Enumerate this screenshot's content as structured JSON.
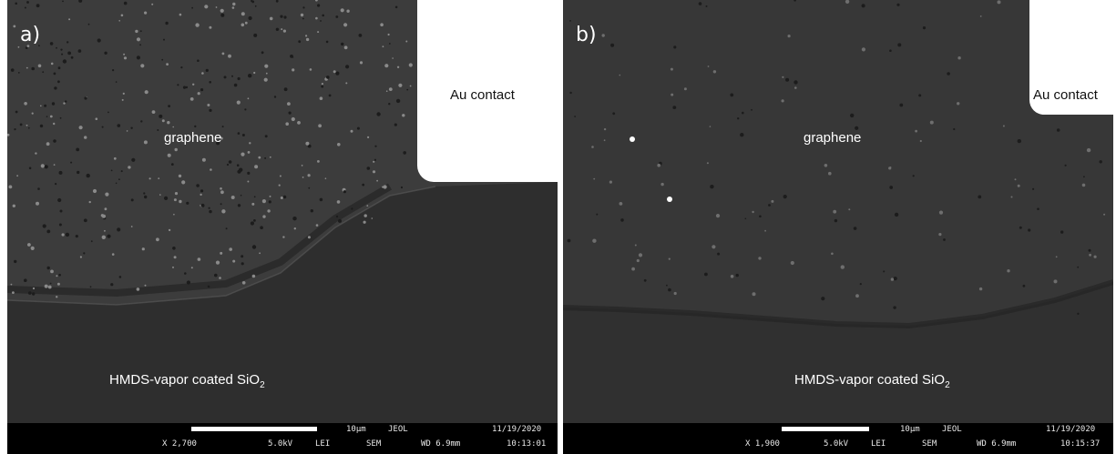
{
  "panels": [
    {
      "label": "a)",
      "graphene_label": "graphene",
      "contact_label": "Au contact",
      "substrate_label": "HMDS-vapor coated SiO",
      "substrate_sub": "2",
      "info": {
        "magnification": "X 2,700",
        "voltage": "5.0kV",
        "detector": "LEI",
        "mode": "SEM",
        "scale": "10µm",
        "brand": "JEOL",
        "wd": "WD 6.9mm",
        "date": "11/19/2020",
        "time": "10:13:01"
      }
    },
    {
      "label": "b)",
      "graphene_label": "graphene",
      "contact_label": "Au contact",
      "substrate_label": "HMDS-vapor coated SiO",
      "substrate_sub": "2",
      "info": {
        "magnification": "X 1,900",
        "voltage": "5.0kV",
        "detector": "LEI",
        "mode": "SEM",
        "scale": "10µm",
        "brand": "JEOL",
        "wd": "WD 6.9mm",
        "date": "11/19/2020",
        "time": "10:15:37"
      }
    }
  ],
  "colors": {
    "substrate": "#2e2e2e",
    "graphene_a": "#3c3c3c",
    "graphene_b": "#363636",
    "contact": "#ffffff",
    "info_bar": "#000000"
  }
}
